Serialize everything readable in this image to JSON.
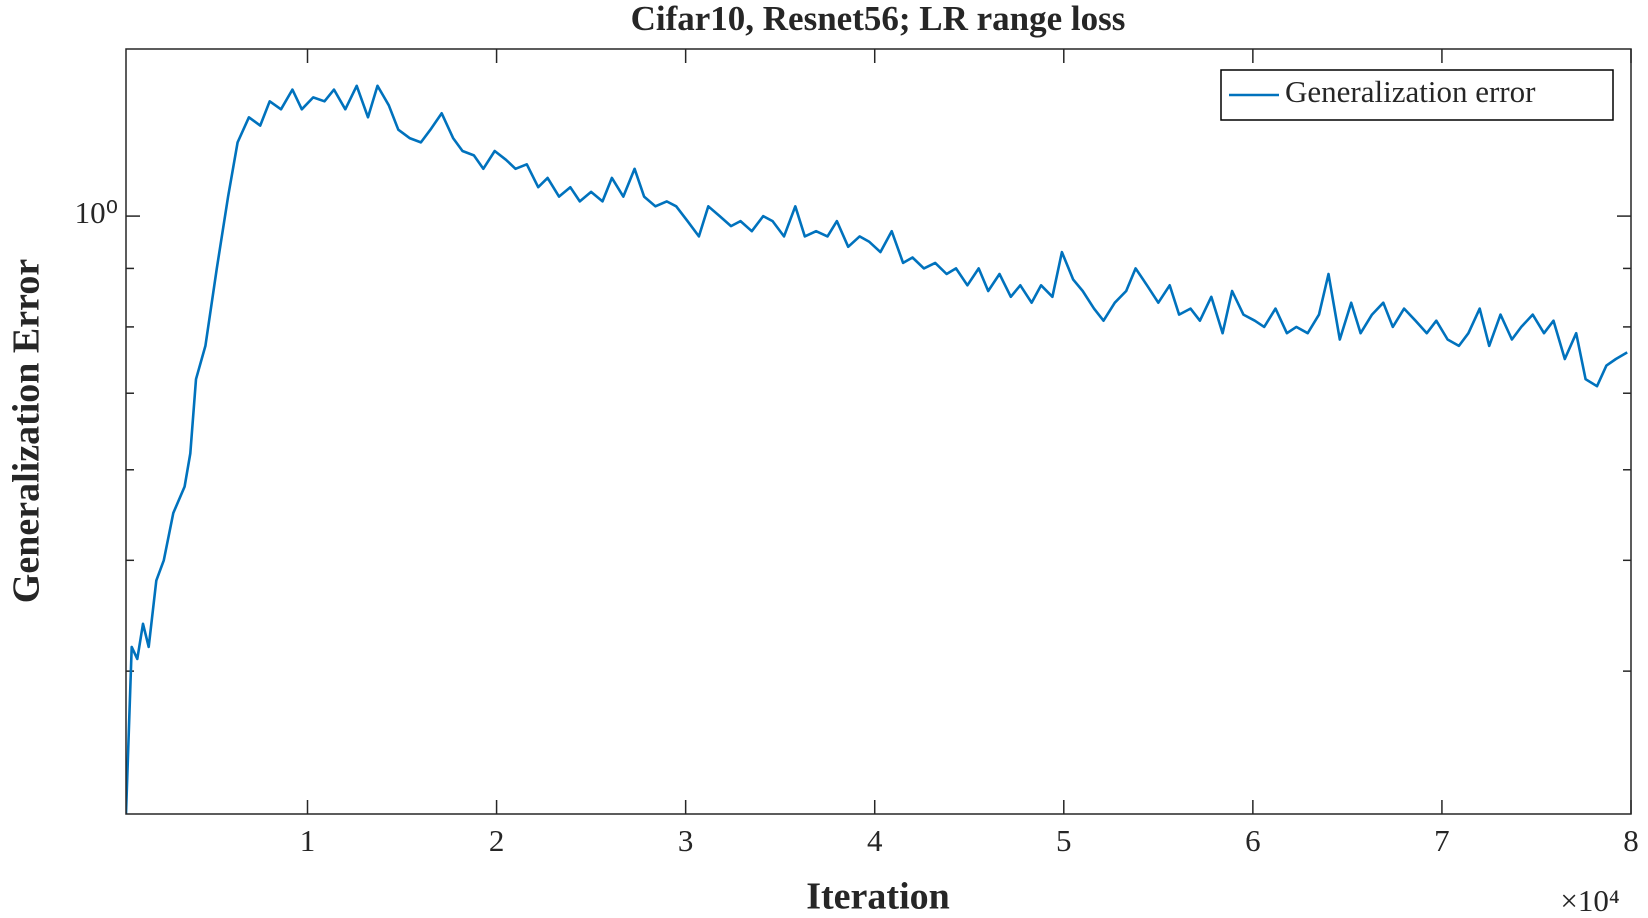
{
  "chart_data": {
    "type": "line",
    "title": "Cifar10, Resnet56; LR range loss",
    "xlabel": "Iteration",
    "ylabel": "Generalization Error",
    "x_exponent": "×10⁴",
    "x": [
      0.04,
      0.07,
      0.1,
      0.13,
      0.16,
      0.2,
      0.24,
      0.29,
      0.35,
      0.38,
      0.41,
      0.46,
      0.52,
      0.58,
      0.63,
      0.69,
      0.75,
      0.8,
      0.86,
      0.92,
      0.97,
      1.03,
      1.09,
      1.14,
      1.2,
      1.26,
      1.32,
      1.37,
      1.43,
      1.48,
      1.54,
      1.6,
      1.65,
      1.71,
      1.77,
      1.82,
      1.88,
      1.93,
      1.99,
      2.05,
      2.1,
      2.16,
      2.22,
      2.27,
      2.33,
      2.39,
      2.44,
      2.5,
      2.56,
      2.61,
      2.67,
      2.73,
      2.78,
      2.84,
      2.9,
      2.95,
      3.01,
      3.07,
      3.12,
      3.18,
      3.24,
      3.29,
      3.35,
      3.41,
      3.46,
      3.52,
      3.58,
      3.63,
      3.69,
      3.75,
      3.8,
      3.86,
      3.92,
      3.97,
      4.03,
      4.09,
      4.15,
      4.2,
      4.26,
      4.32,
      4.38,
      4.43,
      4.49,
      4.55,
      4.6,
      4.66,
      4.72,
      4.77,
      4.83,
      4.88,
      4.94,
      4.99,
      5.05,
      5.1,
      5.16,
      5.21,
      5.27,
      5.33,
      5.38,
      5.44,
      5.5,
      5.56,
      5.61,
      5.67,
      5.72,
      5.78,
      5.84,
      5.89,
      5.95,
      6.01,
      6.06,
      6.12,
      6.18,
      6.23,
      6.29,
      6.35,
      6.4,
      6.46,
      6.52,
      6.57,
      6.63,
      6.69,
      6.74,
      6.8,
      6.86,
      6.92,
      6.97,
      7.03,
      7.09,
      7.14,
      7.2,
      7.25,
      7.31,
      7.37,
      7.42,
      7.48,
      7.54,
      7.59,
      7.65,
      7.71,
      7.76,
      7.82,
      7.87,
      7.92,
      7.98
    ],
    "series": [
      {
        "name": "Generalization error",
        "color": "#0072bd",
        "values": [
          0.3,
          0.42,
          0.41,
          0.44,
          0.42,
          0.48,
          0.5,
          0.55,
          0.58,
          0.62,
          0.72,
          0.77,
          0.9,
          1.04,
          1.16,
          1.22,
          1.2,
          1.26,
          1.24,
          1.29,
          1.24,
          1.27,
          1.26,
          1.29,
          1.24,
          1.3,
          1.22,
          1.3,
          1.25,
          1.19,
          1.17,
          1.16,
          1.19,
          1.23,
          1.17,
          1.14,
          1.13,
          1.1,
          1.14,
          1.12,
          1.1,
          1.11,
          1.06,
          1.08,
          1.04,
          1.06,
          1.03,
          1.05,
          1.03,
          1.08,
          1.04,
          1.1,
          1.04,
          1.02,
          1.03,
          1.02,
          0.99,
          0.96,
          1.02,
          1.0,
          0.98,
          0.99,
          0.97,
          1.0,
          0.99,
          0.96,
          1.02,
          0.96,
          0.97,
          0.96,
          0.99,
          0.94,
          0.96,
          0.95,
          0.93,
          0.97,
          0.91,
          0.92,
          0.9,
          0.91,
          0.89,
          0.9,
          0.87,
          0.9,
          0.86,
          0.89,
          0.85,
          0.87,
          0.84,
          0.87,
          0.85,
          0.93,
          0.88,
          0.86,
          0.83,
          0.81,
          0.84,
          0.86,
          0.9,
          0.87,
          0.84,
          0.87,
          0.82,
          0.83,
          0.81,
          0.85,
          0.79,
          0.86,
          0.82,
          0.81,
          0.8,
          0.83,
          0.79,
          0.8,
          0.79,
          0.82,
          0.89,
          0.78,
          0.84,
          0.79,
          0.82,
          0.84,
          0.8,
          0.83,
          0.81,
          0.79,
          0.81,
          0.78,
          0.77,
          0.79,
          0.83,
          0.77,
          0.82,
          0.78,
          0.8,
          0.82,
          0.79,
          0.81,
          0.75,
          0.79,
          0.72,
          0.71,
          0.74,
          0.75,
          0.76
        ]
      }
    ],
    "xlim": [
      0.04,
      8
    ],
    "xticks": [
      1,
      2,
      3,
      4,
      5,
      6,
      7,
      8
    ],
    "ylim": [
      0.3,
      1.4
    ],
    "yscale": "log",
    "yticks": [
      {
        "value": 1,
        "label": "10⁰"
      }
    ],
    "yminorticks": [
      0.4,
      0.5,
      0.6,
      0.7,
      0.8,
      0.9
    ],
    "grid": false,
    "legend": "upper right"
  }
}
